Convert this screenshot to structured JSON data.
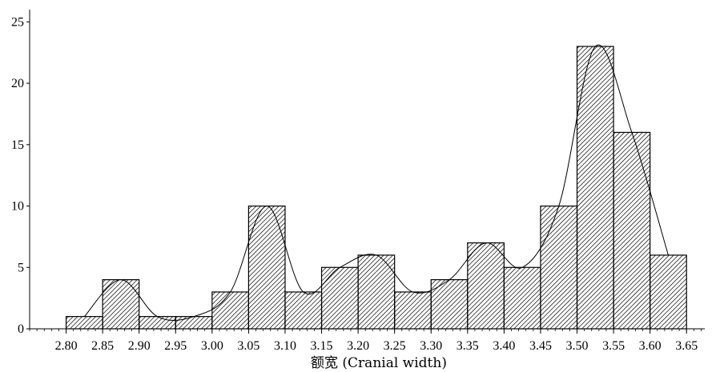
{
  "chart_data": {
    "type": "bar",
    "subtype": "histogram",
    "xlabel": "额宽 (Cranial width)",
    "ylabel": "",
    "title": "",
    "bin_edges": [
      2.8,
      2.85,
      2.9,
      2.95,
      3.0,
      3.05,
      3.1,
      3.15,
      3.2,
      3.25,
      3.3,
      3.35,
      3.4,
      3.45,
      3.5,
      3.55,
      3.6,
      3.65
    ],
    "values": [
      1,
      4,
      1,
      1,
      3,
      10,
      3,
      5,
      6,
      3,
      4,
      7,
      5,
      10,
      23,
      16,
      6
    ],
    "x_ticks": [
      "2.80",
      "2.85",
      "2.90",
      "2.95",
      "3.00",
      "3.05",
      "3.10",
      "3.15",
      "3.20",
      "3.25",
      "3.30",
      "3.35",
      "3.40",
      "3.45",
      "3.50",
      "3.55",
      "3.60",
      "3.65"
    ],
    "y_ticks": [
      "0",
      "5",
      "10",
      "15",
      "20",
      "25"
    ],
    "xlim": [
      2.75,
      3.675
    ],
    "ylim": [
      0,
      26
    ],
    "fill": "hatched",
    "overlay": "smooth density curve",
    "grid": false,
    "colors": {
      "bar_fill": "#ffffff",
      "hatch": "#000000",
      "bar_edge": "#000000",
      "curve": "#000000"
    }
  }
}
